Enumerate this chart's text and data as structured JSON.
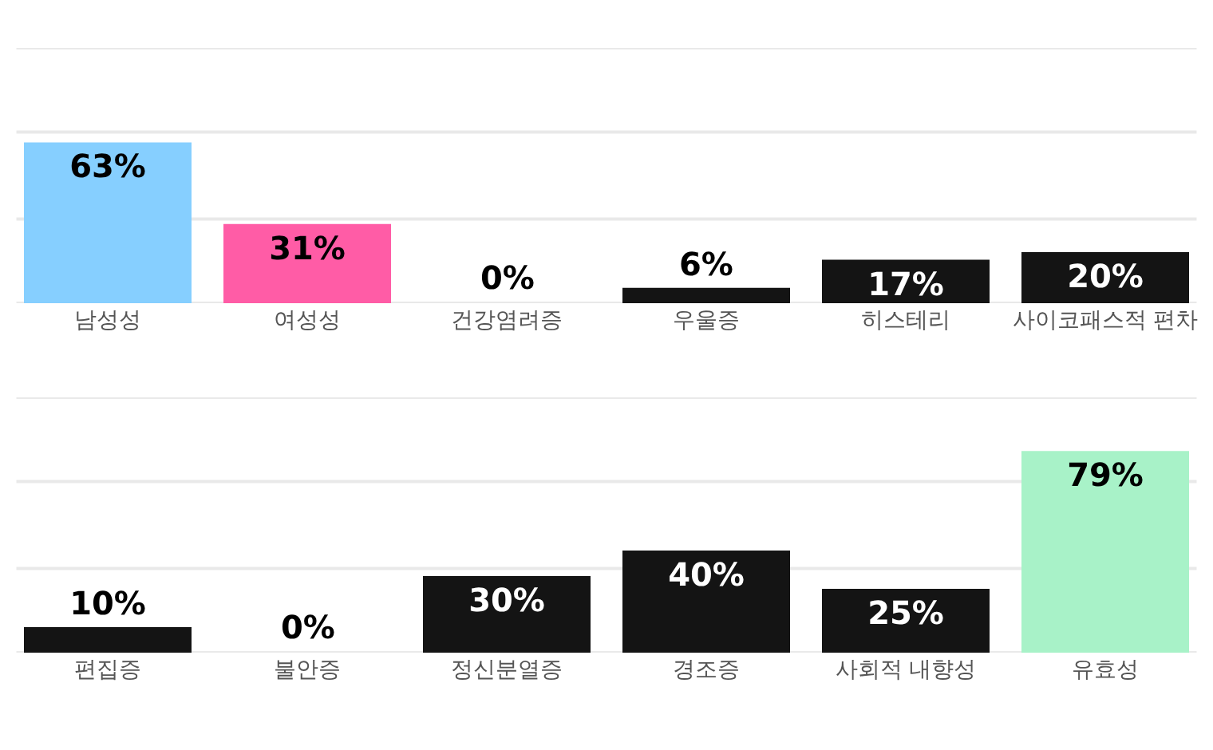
{
  "chart_data": [
    {
      "type": "bar",
      "categories": [
        "남성성",
        "여성성",
        "건강염려증",
        "우울증",
        "히스테리",
        "사이코패스적 편차"
      ],
      "values": [
        63,
        31,
        0,
        6,
        17,
        20
      ],
      "colors": [
        "#86cfff",
        "#ff5ca6",
        "#141414",
        "#141414",
        "#141414",
        "#141414"
      ],
      "value_labels": [
        "63%",
        "31%",
        "0%",
        "6%",
        "17%",
        "20%"
      ],
      "ylim": [
        0,
        100
      ],
      "yticks": [
        {
          "value": 0,
          "label": null
        },
        {
          "value": 33,
          "label": null
        },
        {
          "value": 67,
          "label": null
        },
        {
          "value": 100,
          "label": null
        }
      ],
      "grid": "y",
      "tick_labels": "x"
    },
    {
      "type": "bar",
      "categories": [
        "편집증",
        "불안증",
        "정신분열증",
        "경조증",
        "사회적 내향성",
        "유효성"
      ],
      "values": [
        10,
        0,
        30,
        40,
        25,
        79
      ],
      "colors": [
        "#141414",
        "#141414",
        "#141414",
        "#141414",
        "#141414",
        "#a8f2c8"
      ],
      "value_labels": [
        "10%",
        "0%",
        "30%",
        "40%",
        "25%",
        "79%"
      ],
      "ylim": [
        0,
        100
      ],
      "yticks": [
        {
          "value": 0,
          "label": null
        },
        {
          "value": 33,
          "label": null
        },
        {
          "value": 67,
          "label": null
        },
        {
          "value": 100,
          "label": null
        }
      ],
      "grid": "y",
      "tick_labels": "x"
    }
  ]
}
